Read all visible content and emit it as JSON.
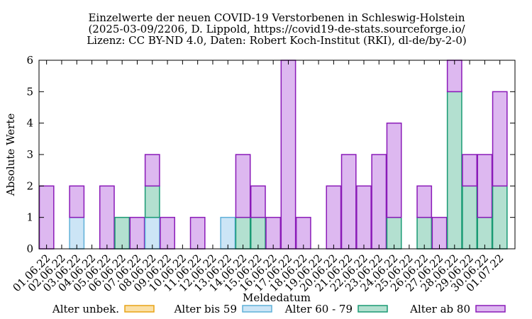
{
  "chart_data": {
    "type": "bar",
    "stacked": true,
    "title_lines": [
      "Einzelwerte der neuen COVID-19 Verstorbenen in Schleswig-Holstein",
      "(2025-03-09/2206, D. Lippold, https://covid19-de-stats.sourceforge.io/",
      "Lizenz: CC BY-ND 4.0, Daten: Robert Koch-Institut (RKI), dl-de/by-2-0)"
    ],
    "xlabel": "Meldedatum",
    "ylabel": "Absolute Werte",
    "ylim": [
      0,
      6
    ],
    "yticks": [
      0,
      1,
      2,
      3,
      4,
      5,
      6
    ],
    "grid": false,
    "legend_position": "bottom",
    "categories": [
      "01.06.22",
      "02.06.22",
      "03.06.22",
      "04.06.22",
      "05.06.22",
      "06.06.22",
      "07.06.22",
      "08.06.22",
      "09.06.22",
      "10.06.22",
      "11.06.22",
      "12.06.22",
      "13.06.22",
      "14.06.22",
      "15.06.22",
      "16.06.22",
      "17.06.22",
      "18.06.22",
      "19.06.22",
      "20.06.22",
      "21.06.22",
      "22.06.22",
      "23.06.22",
      "24.06.22",
      "25.06.22",
      "26.06.22",
      "27.06.22",
      "28.06.22",
      "29.06.22",
      "30.06.22",
      "01.07.22"
    ],
    "series": [
      {
        "name": "Alter unbek.",
        "fill": "#fbe0a6",
        "stroke": "#e8a317",
        "values": [
          0,
          0,
          0,
          0,
          0,
          0,
          0,
          0,
          0,
          0,
          0,
          0,
          0,
          0,
          0,
          0,
          0,
          0,
          0,
          0,
          0,
          0,
          0,
          0,
          0,
          0,
          0,
          0,
          0,
          0,
          0
        ]
      },
      {
        "name": "Alter bis 59",
        "fill": "#cce5f6",
        "stroke": "#5fb0d8",
        "values": [
          0,
          0,
          1,
          0,
          0,
          0,
          0,
          1,
          0,
          0,
          0,
          0,
          1,
          0,
          0,
          0,
          0,
          0,
          0,
          0,
          0,
          0,
          0,
          0,
          0,
          0,
          0,
          0,
          0,
          0,
          0
        ]
      },
      {
        "name": "Alter 60 - 79",
        "fill": "#b3e0d0",
        "stroke": "#1a9a74",
        "values": [
          0,
          0,
          0,
          0,
          0,
          1,
          0,
          1,
          0,
          0,
          0,
          0,
          0,
          1,
          1,
          0,
          0,
          0,
          0,
          0,
          0,
          0,
          0,
          1,
          0,
          1,
          0,
          5,
          2,
          1,
          2
        ]
      },
      {
        "name": "Alter ab 80",
        "fill": "#ddb8f0",
        "stroke": "#8a1ab8",
        "values": [
          2,
          0,
          1,
          0,
          2,
          0,
          1,
          1,
          1,
          0,
          1,
          0,
          0,
          2,
          1,
          1,
          6,
          1,
          0,
          2,
          3,
          2,
          3,
          3,
          0,
          1,
          1,
          1,
          1,
          2,
          3
        ]
      }
    ]
  }
}
